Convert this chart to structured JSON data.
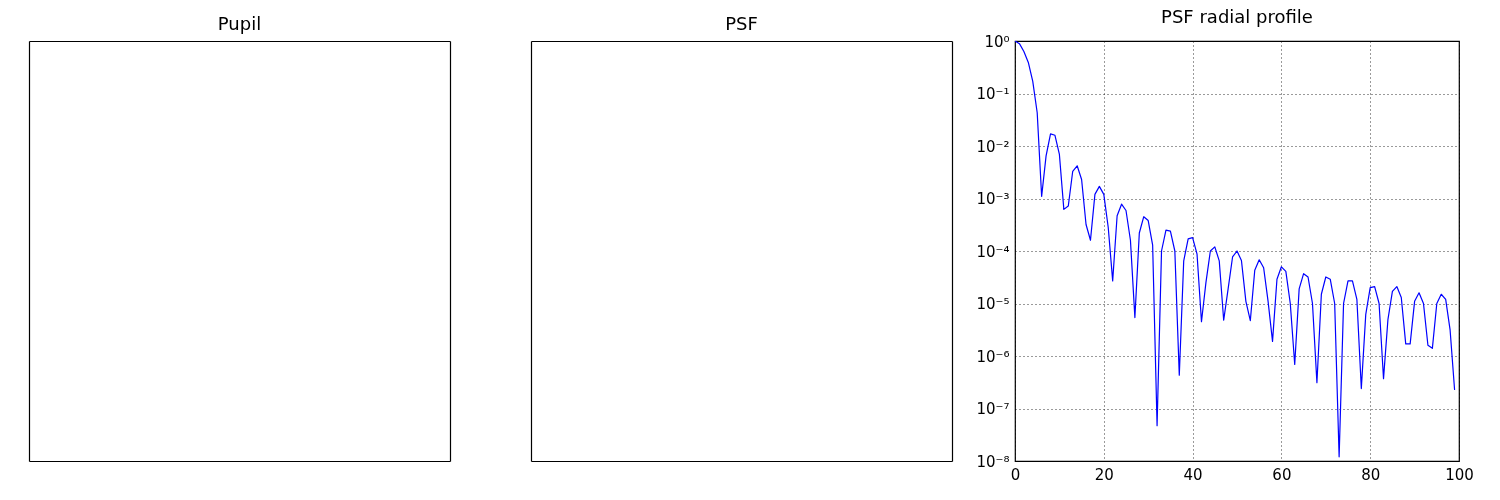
{
  "chart_data": [
    {
      "type": "other",
      "title": "Pupil"
    },
    {
      "type": "other",
      "title": "PSF"
    },
    {
      "type": "line",
      "title": "PSF radial profile",
      "x": [
        0,
        1,
        2,
        3,
        4,
        5,
        6,
        7,
        8,
        9,
        10,
        11,
        12,
        13,
        14,
        15,
        16,
        17,
        18,
        19,
        20,
        21,
        22,
        23,
        24,
        25,
        26,
        27,
        28,
        29,
        30,
        31,
        32,
        33,
        34,
        35,
        36,
        37,
        38,
        39,
        40,
        41,
        42,
        43,
        44,
        45,
        46,
        47,
        48,
        49,
        50,
        51,
        52,
        53,
        54,
        55,
        56,
        57,
        58,
        59,
        60,
        61,
        62,
        63,
        64,
        65,
        66,
        67,
        68,
        69,
        70,
        71,
        72,
        73,
        74,
        75,
        76,
        77,
        78,
        79,
        80,
        81,
        82,
        83,
        84,
        85,
        86,
        87,
        88,
        89,
        90,
        91,
        92,
        93,
        94,
        95,
        96,
        97,
        98,
        99
      ],
      "series": [
        {
          "color": "#0000ff",
          "values": [
            1,
            0.89,
            0.63,
            0.39,
            0.17,
            0.043,
            0.0011,
            0.0065,
            0.017,
            0.016,
            0.0069,
            0.00062,
            0.00072,
            0.0033,
            0.0042,
            0.0023,
            0.00032,
            0.00016,
            0.0012,
            0.0017,
            0.0012,
            0.00028,
            2.7e-05,
            0.00047,
            0.00078,
            0.00059,
            0.00016,
            5.4e-06,
            0.00022,
            0.00045,
            0.00038,
            0.00013,
            4.7e-08,
            0.0001,
            0.00025,
            0.00024,
            0.0001,
            4.3e-07,
            6.5e-05,
            0.00017,
            0.00018,
            8.7e-05,
            4.5e-06,
            2.5e-05,
            0.0001,
            0.00012,
            6.5e-05,
            4.8e-06,
            1.9e-05,
            7.7e-05,
            0.0001,
            6.6e-05,
            1.1e-05,
            4.7e-06,
            4.3e-05,
            6.8e-05,
            4.8e-05,
            1.1e-05,
            1.9e-06,
            2.9e-05,
            5e-05,
            4.1e-05,
            1e-05,
            6.9e-07,
            1.9e-05,
            3.7e-05,
            3.2e-05,
            1e-05,
            3.1e-07,
            1.5e-05,
            3.2e-05,
            2.9e-05,
            1e-05,
            1.2e-08,
            1e-05,
            2.7e-05,
            2.7e-05,
            1.2e-05,
            2.4e-07,
            6.2e-06,
            2e-05,
            2.1e-05,
            1e-05,
            3.7e-07,
            5e-06,
            1.7e-05,
            2.1e-05,
            1.3e-05,
            1.7e-06,
            1.7e-06,
            1.1e-05,
            1.6e-05,
            1e-05,
            1.6e-06,
            1.4e-06,
            1e-05,
            1.5e-05,
            1.2e-05,
            3.1e-06,
            2.3e-07
          ]
        }
      ],
      "xlim": [
        0,
        100
      ],
      "xticks": [
        0,
        20,
        40,
        60,
        80,
        100
      ],
      "ylim": [
        1e-08,
        1
      ],
      "yticks": [
        {
          "value": 1e-08,
          "label": "10⁻⁸"
        },
        {
          "value": 1e-07,
          "label": "10⁻⁷"
        },
        {
          "value": 1e-06,
          "label": "10⁻⁶"
        },
        {
          "value": 1e-05,
          "label": "10⁻⁵"
        },
        {
          "value": 0.0001,
          "label": "10⁻⁴"
        },
        {
          "value": 0.001,
          "label": "10⁻³"
        },
        {
          "value": 0.01,
          "label": "10⁻²"
        },
        {
          "value": 0.1,
          "label": "10⁻¹"
        },
        {
          "value": 1,
          "label": "10⁰"
        }
      ],
      "log": true,
      "grid": true,
      "line_style": "solid"
    }
  ]
}
